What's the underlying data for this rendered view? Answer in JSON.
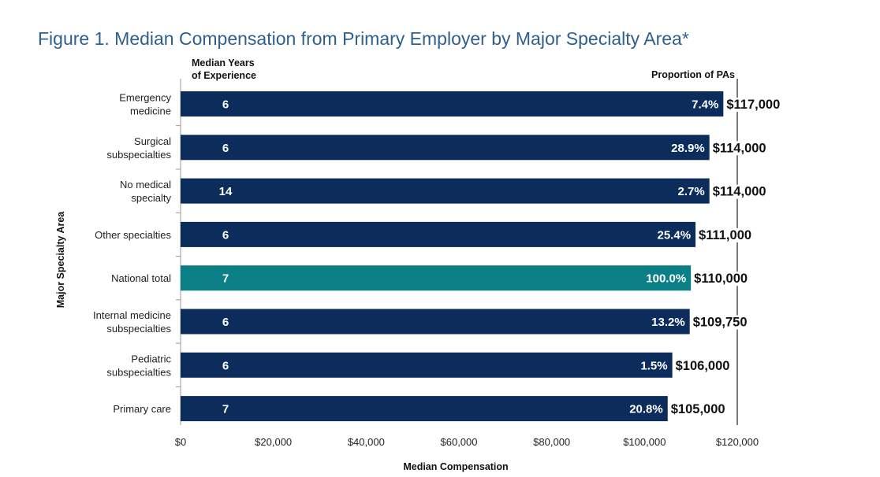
{
  "figure": {
    "title": "Figure 1. Median Compensation from Primary Employer by Major Specialty Area*"
  },
  "chart_data": {
    "type": "bar",
    "orientation": "horizontal",
    "title": "Figure 1. Median Compensation from Primary Employer by Major Specialty Area*",
    "xlabel": "Median Compensation",
    "ylabel": "Major Specialty Area",
    "xlim": [
      0,
      120000
    ],
    "x_ticks": [
      "$0",
      "$20,000",
      "$40,000",
      "$60,000",
      "$80,000",
      "$100,000",
      "$120,000"
    ],
    "x_tick_values": [
      0,
      20000,
      40000,
      60000,
      80000,
      100000,
      120000
    ],
    "years_header": [
      "Median Years",
      "of Experience"
    ],
    "proportion_header": "Proportion of PAs",
    "colors": {
      "default": "#0c2d5c",
      "highlight": "#0b7f86",
      "divider": "#333333",
      "title": "#2f5f8f"
    },
    "categories": [
      {
        "lines": [
          "Emergency",
          "medicine"
        ],
        "value": 117000,
        "value_label": "$117,000",
        "years": "6",
        "proportion": "7.4%",
        "highlight": false
      },
      {
        "lines": [
          "Surgical",
          "subspecialties"
        ],
        "value": 114000,
        "value_label": "$114,000",
        "years": "6",
        "proportion": "28.9%",
        "highlight": false
      },
      {
        "lines": [
          "No medical",
          "specialty"
        ],
        "value": 114000,
        "value_label": "$114,000",
        "years": "14",
        "proportion": "2.7%",
        "highlight": false
      },
      {
        "lines": [
          "Other specialties"
        ],
        "value": 111000,
        "value_label": "$111,000",
        "years": "6",
        "proportion": "25.4%",
        "highlight": false
      },
      {
        "lines": [
          "National total"
        ],
        "value": 110000,
        "value_label": "$110,000",
        "years": "7",
        "proportion": "100.0%",
        "highlight": true
      },
      {
        "lines": [
          "Internal medicine",
          "subspecialties"
        ],
        "value": 109750,
        "value_label": "$109,750",
        "years": "6",
        "proportion": "13.2%",
        "highlight": false
      },
      {
        "lines": [
          "Pediatric",
          "subspecialties"
        ],
        "value": 106000,
        "value_label": "$106,000",
        "years": "6",
        "proportion": "1.5%",
        "highlight": false
      },
      {
        "lines": [
          "Primary care"
        ],
        "value": 105000,
        "value_label": "$105,000",
        "years": "7",
        "proportion": "20.8%",
        "highlight": false
      }
    ]
  }
}
